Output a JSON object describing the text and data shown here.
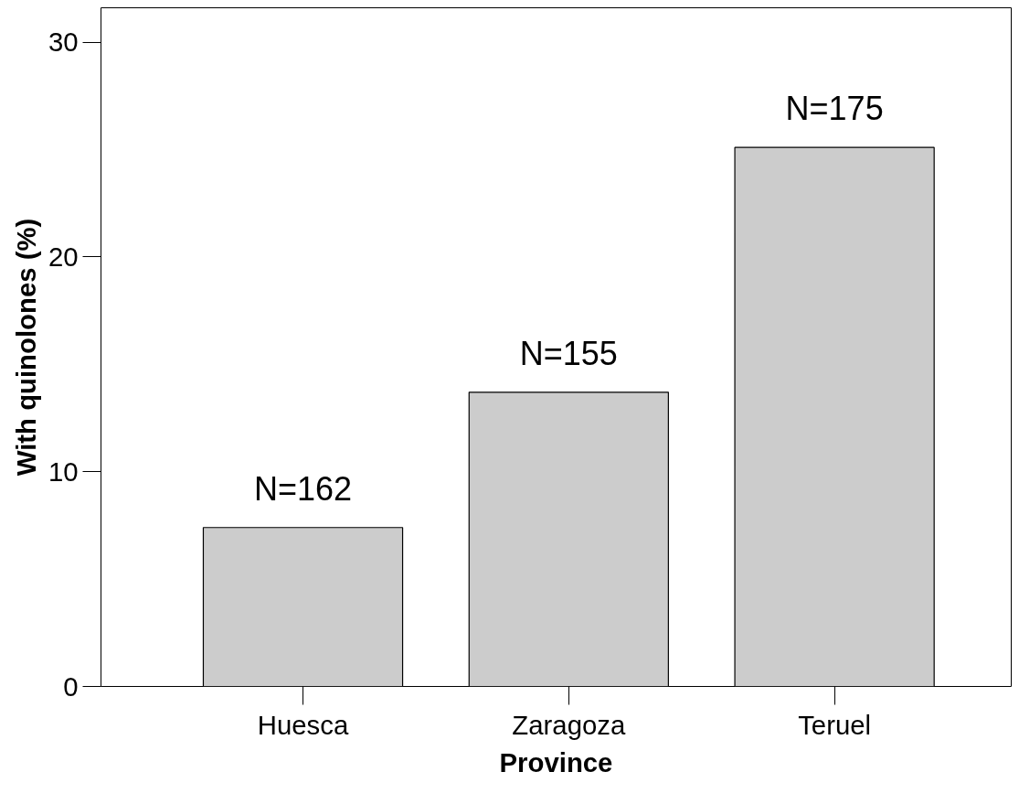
{
  "chart_data": {
    "type": "bar",
    "xlabel": "Province",
    "ylabel": "With quinolones (%)",
    "categories": [
      "Huesca",
      "Zaragoza",
      "Teruel"
    ],
    "values": [
      7.4,
      13.7,
      25.1
    ],
    "color": "#cccccc",
    "ylim": [
      0,
      31.6
    ],
    "yticks": [
      0,
      10,
      20,
      30
    ],
    "annotations": [
      {
        "text": "N=162",
        "x": "Huesca",
        "y": 7.4
      },
      {
        "text": "N=155",
        "x": "Zaragoza",
        "y": 13.7
      },
      {
        "text": "N=175",
        "x": "Teruel",
        "y": 25.1
      }
    ]
  }
}
